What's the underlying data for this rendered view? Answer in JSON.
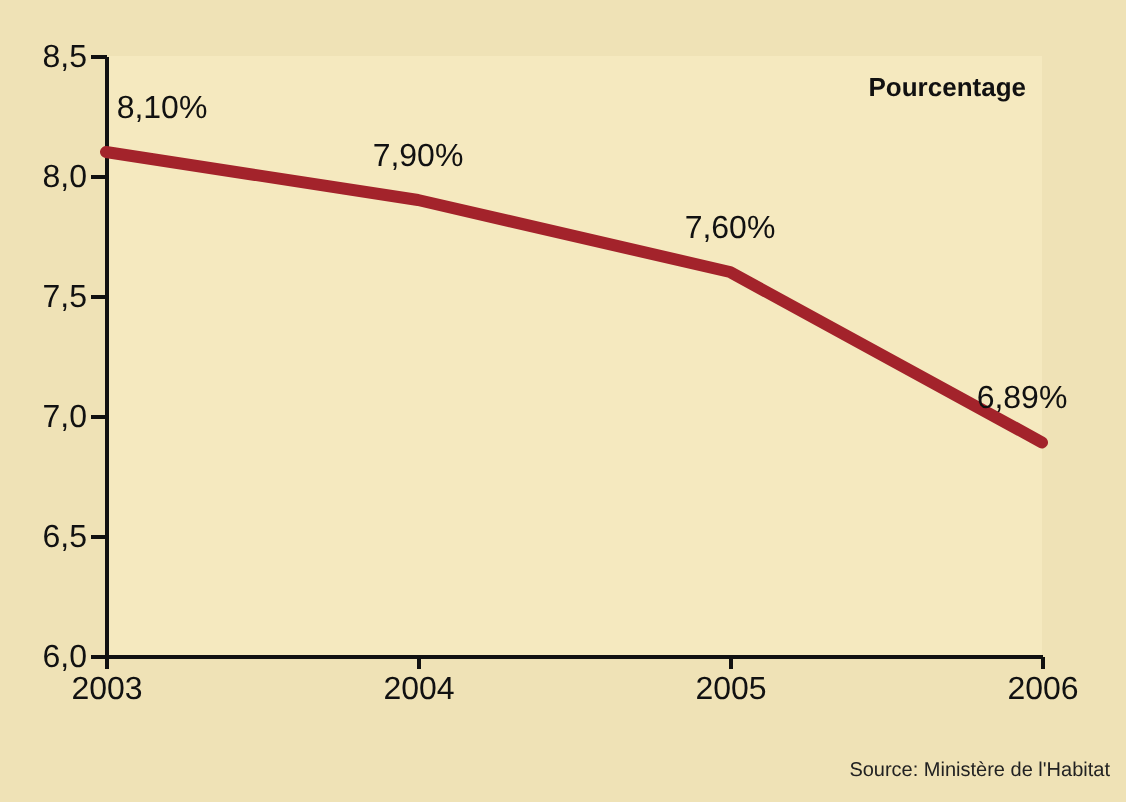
{
  "chart_data": {
    "type": "line",
    "categories": [
      "2003",
      "2004",
      "2005",
      "2006"
    ],
    "series": [
      {
        "color": "#a3232b",
        "values": [
          8.1,
          7.9,
          7.6,
          6.89
        ],
        "value_labels": [
          "8,10%",
          "7,90%",
          "7,60%",
          "6,89%"
        ]
      }
    ],
    "ylim": [
      6,
      8.5
    ],
    "yticks": [
      {
        "value": 6,
        "label": "6,0"
      },
      {
        "value": 6.5,
        "label": "6,5"
      },
      {
        "value": 7,
        "label": "7,0"
      },
      {
        "value": 7.5,
        "label": "7,5"
      },
      {
        "value": 8,
        "label": "8,0"
      },
      {
        "value": 8.5,
        "label": "8,5"
      }
    ],
    "grid": false,
    "legend": false,
    "marker": "none",
    "line_style": "solid",
    "annotations": [
      "Pourcentage",
      "Source: Ministère de l'Habitat"
    ]
  }
}
